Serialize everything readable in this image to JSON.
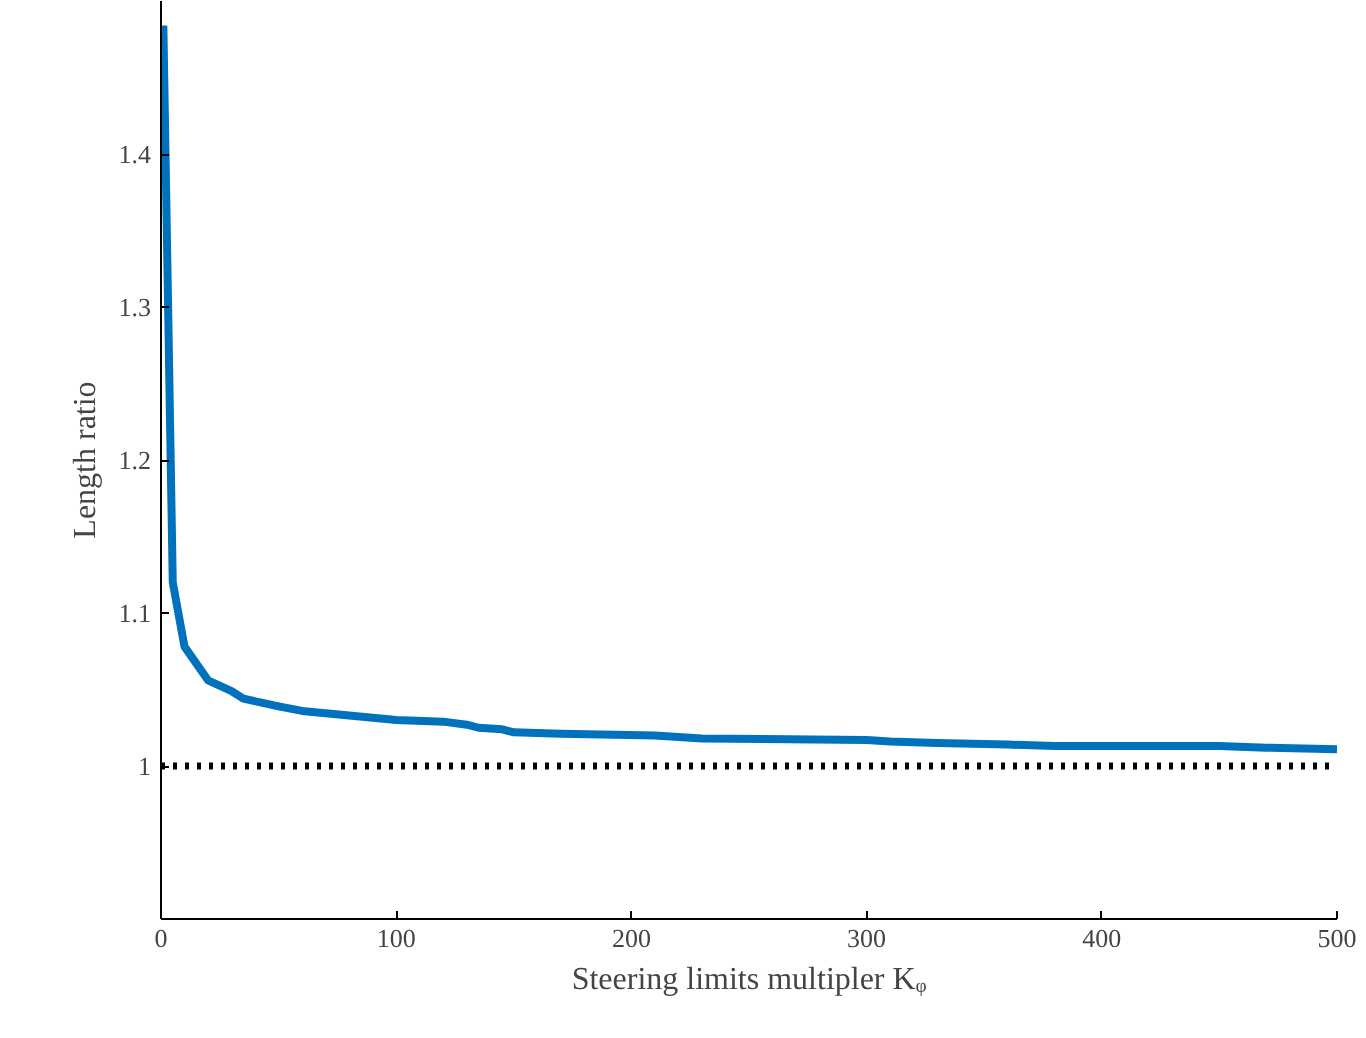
{
  "chart_data": {
    "type": "line",
    "xlabel": "Steering limits multipler Kᵩ",
    "ylabel": "Length ratio",
    "x": [
      1,
      5,
      10,
      20,
      30,
      35,
      50,
      60,
      80,
      100,
      120,
      130,
      135,
      145,
      150,
      170,
      210,
      220,
      230,
      300,
      310,
      330,
      360,
      380,
      450,
      470,
      500
    ],
    "series": [
      {
        "color": "#0072bd",
        "values": [
          1.484,
          1.12,
          1.078,
          1.056,
          1.049,
          1.044,
          1.039,
          1.036,
          1.033,
          1.03,
          1.029,
          1.027,
          1.025,
          1.024,
          1.022,
          1.021,
          1.02,
          1.019,
          1.018,
          1.017,
          1.016,
          1.015,
          1.014,
          1.013,
          1.013,
          1.012,
          1.011
        ]
      }
    ],
    "xlim": [
      0,
      500
    ],
    "ylim": [
      0.9,
      1.5
    ],
    "xticks": [
      0,
      100,
      200,
      300,
      400,
      500
    ],
    "yticks": [
      1,
      1.1,
      1.2,
      1.3,
      1.4
    ],
    "ref_lines": [
      {
        "axis": "y",
        "value": 1,
        "color": "#000000",
        "line_style": "dotted"
      }
    ],
    "grid": false,
    "line_style": "solid",
    "marker": "none"
  }
}
